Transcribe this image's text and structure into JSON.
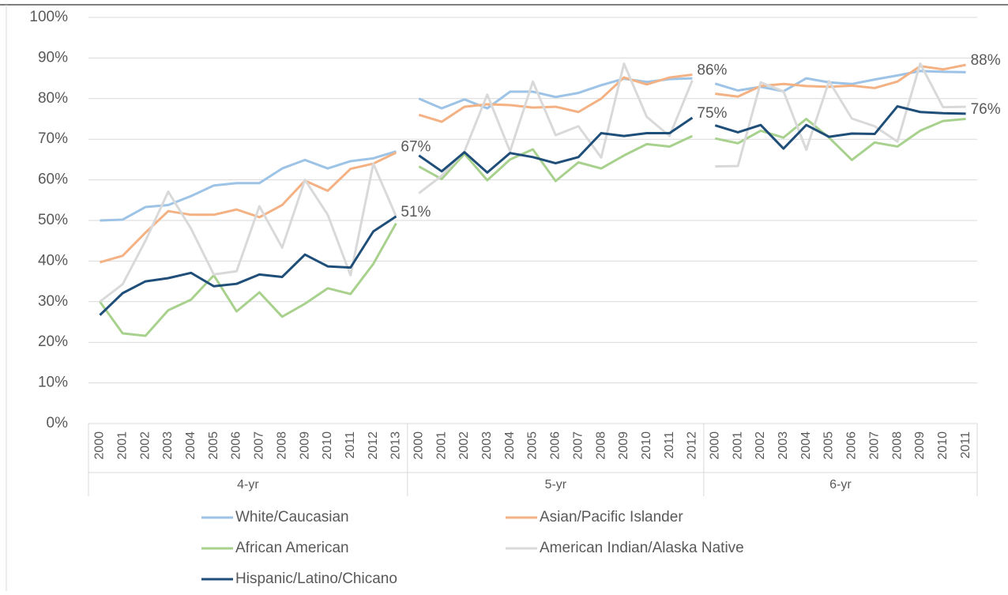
{
  "chart_data": {
    "type": "line",
    "groups": [
      {
        "label": "4-yr",
        "categories": [
          "2000",
          "2001",
          "2002",
          "2003",
          "2004",
          "2005",
          "2006",
          "2007",
          "2008",
          "2009",
          "2010",
          "2011",
          "2012",
          "2013"
        ]
      },
      {
        "label": "5-yr",
        "categories": [
          "2000",
          "2001",
          "2002",
          "2003",
          "2004",
          "2005",
          "2006",
          "2007",
          "2008",
          "2009",
          "2010",
          "2011",
          "2012"
        ]
      },
      {
        "label": "6-yr",
        "categories": [
          "2000",
          "2001",
          "2002",
          "2003",
          "2004",
          "2005",
          "2006",
          "2007",
          "2008",
          "2009",
          "2010",
          "2011"
        ]
      }
    ],
    "ylim": [
      0,
      100
    ],
    "yticks": [
      {
        "value": 0,
        "label": "0%"
      },
      {
        "value": 10,
        "label": "10%"
      },
      {
        "value": 20,
        "label": "20%"
      },
      {
        "value": 30,
        "label": "30%"
      },
      {
        "value": 40,
        "label": "40%"
      },
      {
        "value": 50,
        "label": "50%"
      },
      {
        "value": 60,
        "label": "60%"
      },
      {
        "value": 70,
        "label": "70%"
      },
      {
        "value": 80,
        "label": "80%"
      },
      {
        "value": 90,
        "label": "90%"
      },
      {
        "value": 100,
        "label": "100%"
      }
    ],
    "grid": true,
    "legend": "bottom",
    "series": [
      {
        "name": "White/Caucasian",
        "color": "#9dc3e6",
        "values": [
          [
            50.0,
            50.2,
            53.3,
            53.8,
            56.0,
            58.6,
            59.2,
            59.2,
            62.8,
            64.9,
            62.8,
            64.6,
            65.3,
            67.0
          ],
          [
            80.0,
            77.6,
            79.8,
            77.6,
            81.7,
            81.7,
            80.4,
            81.4,
            83.3,
            84.9,
            84.1,
            84.8,
            85.0
          ],
          [
            83.7,
            82.0,
            82.9,
            81.8,
            85.0,
            84.0,
            83.6,
            84.7,
            85.7,
            86.8,
            86.6,
            86.5
          ]
        ],
        "value_labels": [
          [
            null,
            null,
            null,
            null,
            null,
            null,
            null,
            null,
            null,
            null,
            null,
            null,
            null,
            "67%"
          ],
          [
            null,
            null,
            null,
            null,
            null,
            null,
            null,
            null,
            null,
            null,
            null,
            null,
            null
          ],
          [
            null,
            null,
            null,
            null,
            null,
            null,
            null,
            null,
            null,
            null,
            null,
            null
          ]
        ]
      },
      {
        "name": "Asian/Pacific Islander",
        "color": "#f4b183",
        "values": [
          [
            39.7,
            41.3,
            47.0,
            52.3,
            51.4,
            51.4,
            52.7,
            50.8,
            53.8,
            59.8,
            57.3,
            62.7,
            64.0,
            66.7
          ],
          [
            76.0,
            74.3,
            78.0,
            78.6,
            78.4,
            77.8,
            78.0,
            76.7,
            80.0,
            85.2,
            83.5,
            85.2,
            85.9
          ],
          [
            81.2,
            80.5,
            83.1,
            83.6,
            83.1,
            82.9,
            83.2,
            82.6,
            84.2,
            88.0,
            87.2,
            88.3
          ]
        ],
        "value_labels": [
          [
            null,
            null,
            null,
            null,
            null,
            null,
            null,
            null,
            null,
            null,
            null,
            null,
            null,
            null
          ],
          [
            null,
            null,
            null,
            null,
            null,
            null,
            null,
            null,
            null,
            null,
            null,
            null,
            "86%"
          ],
          [
            null,
            null,
            null,
            null,
            null,
            null,
            null,
            null,
            null,
            null,
            null,
            "88%"
          ]
        ]
      },
      {
        "name": "African American",
        "color": "#a9d18e",
        "values": [
          [
            30.0,
            22.2,
            21.6,
            27.9,
            30.5,
            36.5,
            27.6,
            32.3,
            26.3,
            29.5,
            33.3,
            31.9,
            39.3,
            49.3
          ],
          [
            63.3,
            60.2,
            66.4,
            59.9,
            65.0,
            67.5,
            59.7,
            64.3,
            62.8,
            66.0,
            68.8,
            68.2,
            70.8
          ],
          [
            70.2,
            69.0,
            72.1,
            70.4,
            75.0,
            70.4,
            64.9,
            69.2,
            68.2,
            72.1,
            74.5,
            75.0
          ]
        ]
      },
      {
        "name": "American Indian/Alaska Native",
        "color": "#d9d9d9",
        "values": [
          [
            30.0,
            34.3,
            45.0,
            57.1,
            48.0,
            36.7,
            37.5,
            53.5,
            43.3,
            60.0,
            51.4,
            36.5,
            64.0,
            51.0
          ],
          [
            56.7,
            61.0,
            67.0,
            81.0,
            67.0,
            84.2,
            71.0,
            73.2,
            65.5,
            88.6,
            75.5,
            70.8,
            84.5
          ],
          [
            63.3,
            63.4,
            84.0,
            81.8,
            67.4,
            84.3,
            75.1,
            73.2,
            69.4,
            88.6,
            77.9,
            78.0
          ]
        ]
      },
      {
        "name": "Hispanic/Latino/Chicano",
        "color": "#1f4e79",
        "values": [
          [
            26.7,
            32.1,
            35.0,
            35.8,
            37.1,
            33.8,
            34.4,
            36.7,
            36.1,
            41.6,
            38.7,
            38.4,
            47.3,
            51.0
          ],
          [
            66.0,
            62.1,
            66.8,
            61.8,
            66.6,
            65.6,
            64.1,
            65.6,
            71.5,
            70.8,
            71.5,
            71.5,
            75.3
          ],
          [
            73.4,
            71.7,
            73.5,
            67.7,
            73.5,
            70.6,
            71.4,
            71.3,
            78.1,
            76.7,
            76.4,
            76.3
          ]
        ],
        "value_labels": [
          [
            null,
            null,
            null,
            null,
            null,
            null,
            null,
            null,
            null,
            null,
            null,
            null,
            null,
            "51%"
          ],
          [
            null,
            null,
            null,
            null,
            null,
            null,
            null,
            null,
            null,
            null,
            null,
            null,
            "75%"
          ],
          [
            null,
            null,
            null,
            null,
            null,
            null,
            null,
            null,
            null,
            null,
            null,
            "76%"
          ]
        ]
      }
    ]
  }
}
